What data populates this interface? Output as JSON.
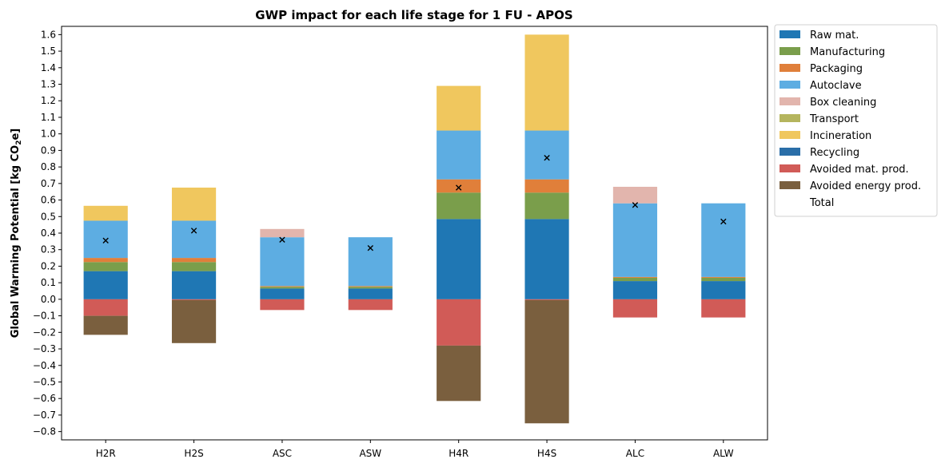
{
  "chart_data": {
    "type": "bar",
    "stacked": true,
    "title": "GWP impact for each life stage for 1 FU - APOS",
    "ylabel": "Global Warming Potential [kg CO2e]",
    "xlabel": "",
    "categories": [
      "H2R",
      "H2S",
      "ASC",
      "ASW",
      "H4R",
      "H4S",
      "ALC",
      "ALW"
    ],
    "ylim": [
      -0.85,
      1.65
    ],
    "yticks": [
      -0.8,
      -0.7,
      -0.6,
      -0.5,
      -0.4,
      -0.3,
      -0.2,
      -0.1,
      0.0,
      0.1,
      0.2,
      0.3,
      0.4,
      0.5,
      0.6,
      0.7,
      0.8,
      0.9,
      1.0,
      1.1,
      1.2,
      1.3,
      1.4,
      1.5,
      1.6
    ],
    "grid": false,
    "legend_position": "outside-right",
    "series": [
      {
        "name": "Raw mat.",
        "color": "#1f77b4",
        "values": [
          0.17,
          0.17,
          0.065,
          0.065,
          0.485,
          0.485,
          0.11,
          0.11
        ]
      },
      {
        "name": "Manufacturing",
        "color": "#7a9e4b",
        "values": [
          0.055,
          0.055,
          0.01,
          0.01,
          0.16,
          0.16,
          0.02,
          0.02
        ]
      },
      {
        "name": "Packaging",
        "color": "#e07f3a",
        "values": [
          0.025,
          0.025,
          0.005,
          0.005,
          0.08,
          0.08,
          0.005,
          0.005
        ]
      },
      {
        "name": "Autoclave",
        "color": "#5dade2",
        "values": [
          0.225,
          0.225,
          0.295,
          0.295,
          0.295,
          0.295,
          0.445,
          0.445
        ]
      },
      {
        "name": "Box cleaning",
        "color": "#e2b5ad",
        "values": [
          0.0,
          0.0,
          0.05,
          0.0,
          0.0,
          0.0,
          0.1,
          0.0
        ]
      },
      {
        "name": "Transport",
        "color": "#b5b55e",
        "values": [
          0.0,
          0.0,
          0.0,
          0.0,
          0.0,
          0.0,
          0.0,
          0.0
        ]
      },
      {
        "name": "Incineration",
        "color": "#f0c75e",
        "values": [
          0.09,
          0.2,
          0.0,
          0.0,
          0.27,
          0.58,
          0.0,
          0.0
        ]
      },
      {
        "name": "Recycling",
        "color": "#2a6ea8",
        "values": [
          0.0,
          0.0,
          0.0,
          0.0,
          0.0,
          0.0,
          0.0,
          0.0
        ]
      },
      {
        "name": "Avoided mat. prod.",
        "color": "#d15b57",
        "values": [
          -0.1,
          -0.005,
          -0.065,
          -0.065,
          -0.28,
          -0.005,
          -0.11,
          -0.11
        ]
      },
      {
        "name": "Avoided energy prod.",
        "color": "#7a5f3e",
        "values": [
          -0.115,
          -0.26,
          0.0,
          0.0,
          -0.335,
          -0.745,
          0.0,
          0.0
        ]
      }
    ],
    "total_series": {
      "name": "Total",
      "marker": "x",
      "values": [
        0.355,
        0.415,
        0.36,
        0.31,
        0.675,
        0.855,
        0.57,
        0.47
      ]
    }
  }
}
